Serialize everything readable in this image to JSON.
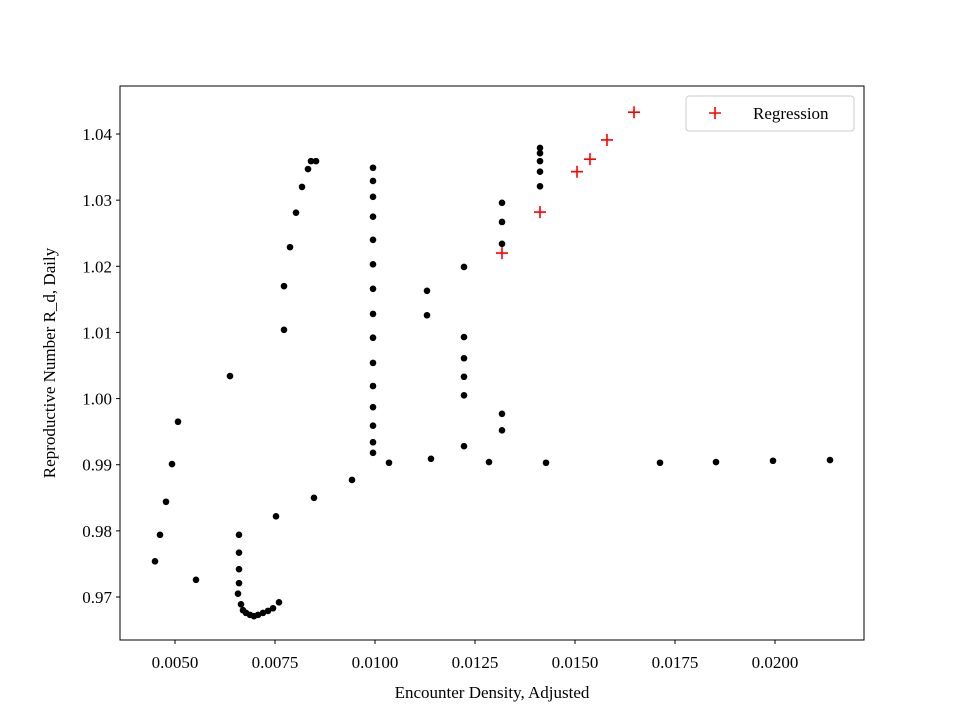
{
  "chart_data": {
    "type": "scatter",
    "xlabel": "Encounter Density, Adjusted",
    "ylabel": "Reproductive Number R_d, Daily",
    "xlim": [
      0.003625,
      0.022225
    ],
    "ylim": [
      0.9635,
      1.04726
    ],
    "xticks": [
      {
        "value": 0.005,
        "label": "0.0050"
      },
      {
        "value": 0.0075,
        "label": "0.0075"
      },
      {
        "value": 0.01,
        "label": "0.0100"
      },
      {
        "value": 0.0125,
        "label": "0.0125"
      },
      {
        "value": 0.015,
        "label": "0.0150"
      },
      {
        "value": 0.0175,
        "label": "0.0175"
      },
      {
        "value": 0.02,
        "label": "0.0200"
      }
    ],
    "yticks": [
      0.97,
      0.98,
      0.99,
      {
        "value": 1.0,
        "label": "1.00"
      },
      1.01,
      1.02,
      1.03,
      1.04
    ],
    "legend": "upper right",
    "series": [
      {
        "color": "#000000",
        "marker": "circle",
        "x": [
          0.0045,
          0.004625,
          0.004775,
          0.004925,
          0.005075,
          0.005525,
          0.006375,
          0.0066,
          0.0066,
          0.0066,
          0.0066,
          0.006575,
          0.00665,
          0.0067,
          0.006775,
          0.006875,
          0.006975,
          0.007075,
          0.0072,
          0.007325,
          0.00745,
          0.0076,
          0.007525,
          0.007725,
          0.007725,
          0.007875,
          0.008025,
          0.008175,
          0.008325,
          0.0084,
          0.008525,
          0.008475,
          0.009425,
          0.00995,
          0.00995,
          0.00995,
          0.00995,
          0.00995,
          0.00995,
          0.00995,
          0.00995,
          0.00995,
          0.00995,
          0.00995,
          0.00995,
          0.00995,
          0.00995,
          0.00995,
          0.01035,
          0.0114,
          0.01285,
          0.014275,
          0.017125,
          0.018525,
          0.01995,
          0.021375,
          0.0113,
          0.0113,
          0.012225,
          0.012225,
          0.012225,
          0.012225,
          0.012225,
          0.012225,
          0.013175,
          0.013175,
          0.013175,
          0.013175,
          0.013175,
          0.014125,
          0.014125,
          0.014125,
          0.014125,
          0.014125
        ],
        "values": [
          0.9754,
          0.9794,
          0.9844,
          0.9901,
          0.9965,
          0.9726,
          1.0034,
          0.9794,
          0.9767,
          0.9742,
          0.9721,
          0.9705,
          0.9689,
          0.968,
          0.9676,
          0.9673,
          0.9671,
          0.9673,
          0.9676,
          0.9679,
          0.9683,
          0.9692,
          0.9822,
          1.017,
          1.0104,
          1.0229,
          1.0281,
          1.032,
          1.0347,
          1.0359,
          1.0359,
          0.985,
          0.9877,
          1.0349,
          1.0329,
          1.0305,
          1.0275,
          1.024,
          1.0203,
          1.0166,
          1.0128,
          1.0092,
          1.0054,
          1.0019,
          0.9987,
          0.9959,
          0.9934,
          0.9918,
          0.9903,
          0.9909,
          0.9904,
          0.9903,
          0.9903,
          0.9904,
          0.9906,
          0.9907,
          1.0163,
          1.0126,
          1.0199,
          1.0093,
          1.0061,
          1.0033,
          1.0005,
          0.9928,
          1.0296,
          1.0267,
          1.0234,
          0.9977,
          0.9952,
          1.0379,
          1.0371,
          1.0359,
          1.0343,
          1.0321
        ]
      },
      {
        "name": "Regression",
        "color": "#ff0000",
        "marker": "plus",
        "x": [
          0.013175,
          0.014125,
          0.01505,
          0.015375,
          0.0158,
          0.016475
        ],
        "values": [
          1.022,
          1.0282,
          1.0343,
          1.0362,
          1.0391,
          1.0433
        ]
      }
    ]
  }
}
